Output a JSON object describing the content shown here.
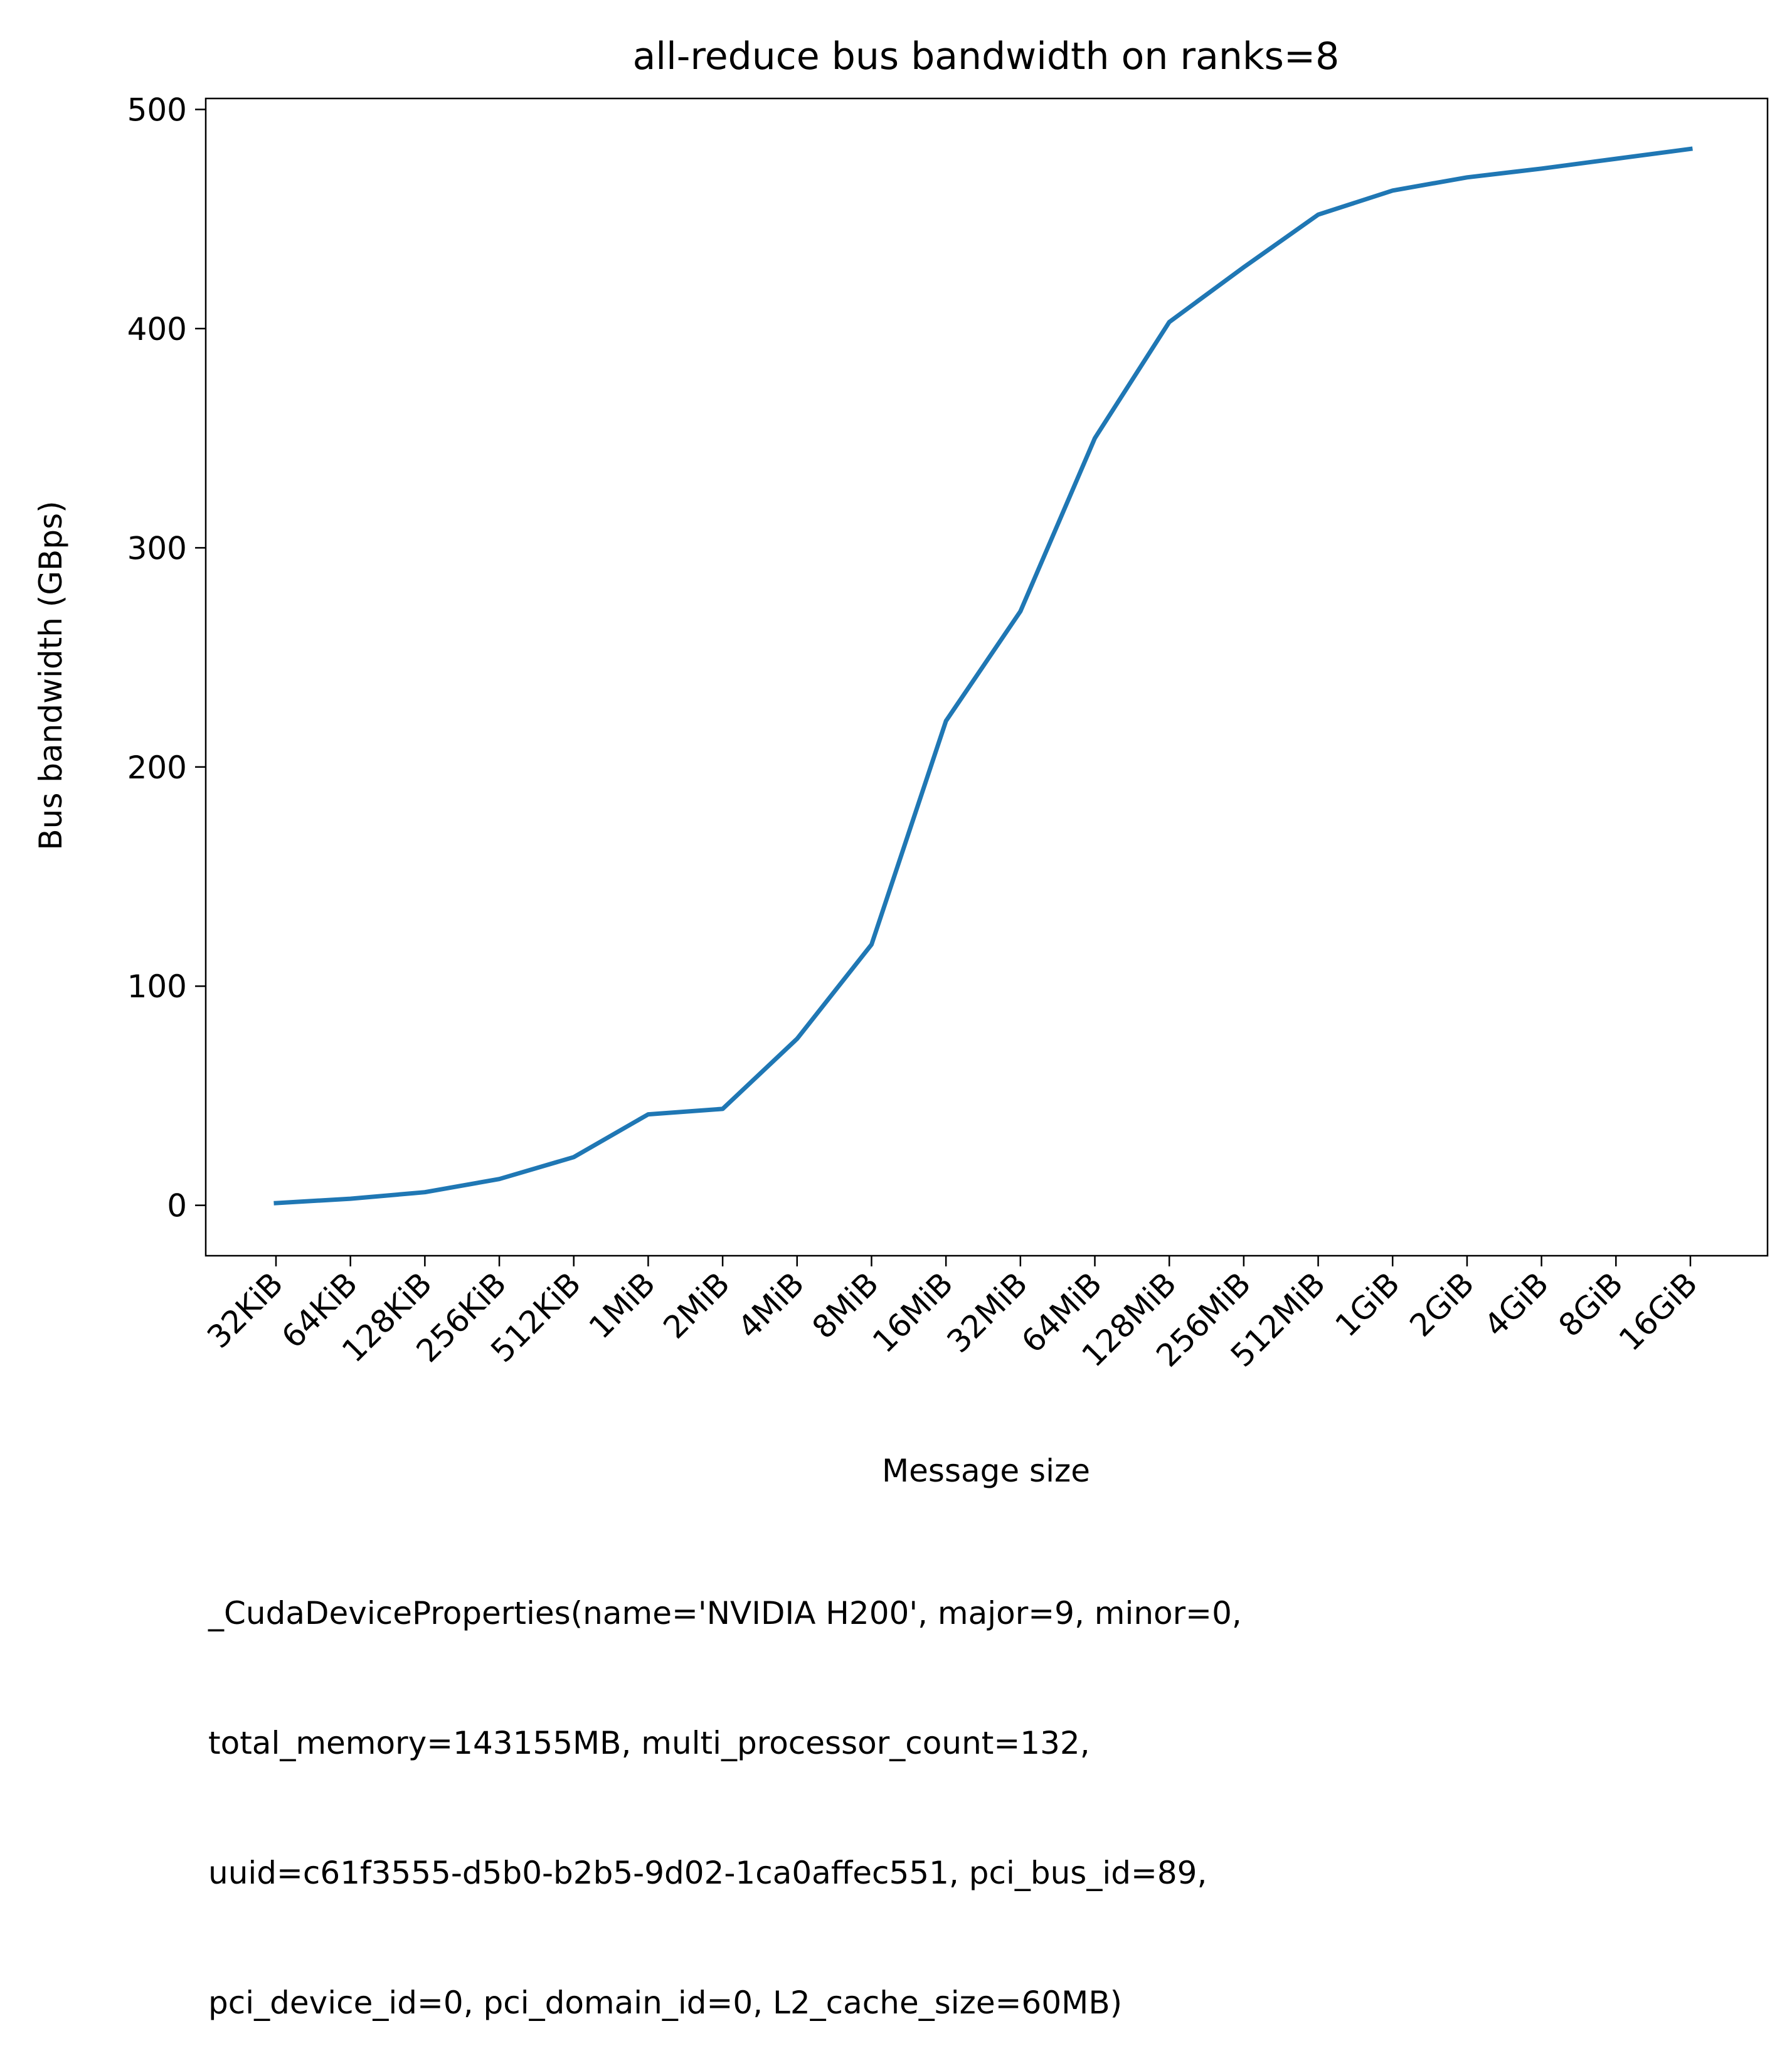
{
  "chart_data": {
    "type": "line",
    "title": "all-reduce bus bandwidth on ranks=8",
    "xlabel": "Message size",
    "ylabel": "Bus bandwidth (GBps)",
    "categories": [
      "32KiB",
      "64KiB",
      "128KiB",
      "256KiB",
      "512KiB",
      "1MiB",
      "2MiB",
      "4MiB",
      "8MiB",
      "16MiB",
      "32MiB",
      "64MiB",
      "128MiB",
      "256MiB",
      "512MiB",
      "1GiB",
      "2GiB",
      "4GiB",
      "8GiB",
      "16GiB"
    ],
    "series": [
      {
        "values": [
          1,
          3,
          6,
          12,
          22,
          41.5,
          44,
          76,
          119,
          221,
          271,
          350,
          403,
          428,
          452,
          463,
          469,
          473,
          477.5,
          482
        ],
        "color": "#1f77b4"
      }
    ],
    "yticks": [
      0,
      100,
      200,
      300,
      400,
      500
    ],
    "ylim": [
      -23,
      505
    ],
    "grid": false,
    "caption_lines": [
      "_CudaDeviceProperties(name='NVIDIA H200', major=9, minor=0,",
      "total_memory=143155MB, multi_processor_count=132,",
      "uuid=c61f3555-d5b0-b2b5-9d02-1ca0affec551, pci_bus_id=89,",
      "pci_device_id=0, pci_domain_id=0, L2_cache_size=60MB)"
    ]
  }
}
